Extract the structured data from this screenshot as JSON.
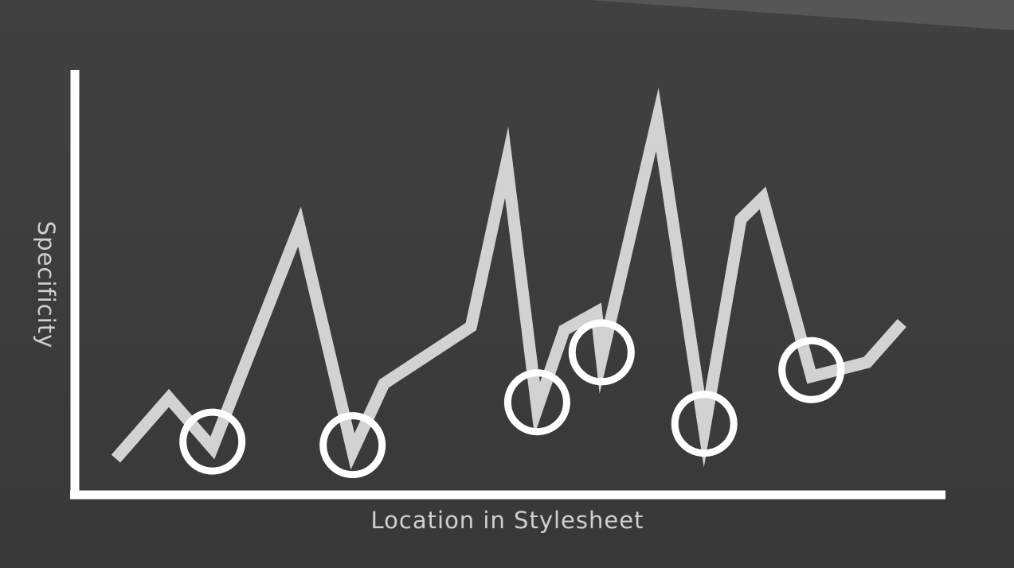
{
  "chart_data": {
    "type": "line",
    "title": "",
    "xlabel": "Location in Stylesheet",
    "ylabel": "Specificity",
    "xlim": [
      0,
      100
    ],
    "ylim": [
      0,
      100
    ],
    "grid": false,
    "legend": "none",
    "series": [
      {
        "values": [
          {
            "x": 4.7,
            "y": 9
          },
          {
            "x": 10.8,
            "y": 26
          },
          {
            "x": 15.8,
            "y": 12
          },
          {
            "x": 25.8,
            "y": 74
          },
          {
            "x": 31.9,
            "y": 11
          },
          {
            "x": 35.5,
            "y": 30
          },
          {
            "x": 45.5,
            "y": 46
          },
          {
            "x": 49.6,
            "y": 92
          },
          {
            "x": 53.1,
            "y": 23
          },
          {
            "x": 56.2,
            "y": 45
          },
          {
            "x": 59.9,
            "y": 50
          },
          {
            "x": 60.5,
            "y": 37
          },
          {
            "x": 66.9,
            "y": 104
          },
          {
            "x": 72.3,
            "y": 17
          },
          {
            "x": 76.5,
            "y": 76
          },
          {
            "x": 79.0,
            "y": 82
          },
          {
            "x": 84.6,
            "y": 32
          },
          {
            "x": 91.0,
            "y": 36
          },
          {
            "x": 95.0,
            "y": 47
          }
        ]
      }
    ],
    "highlighted_minima": [
      {
        "x": 15.8,
        "y": 12
      },
      {
        "x": 31.9,
        "y": 11
      },
      {
        "x": 53.1,
        "y": 23
      },
      {
        "x": 60.5,
        "y": 37
      },
      {
        "x": 72.3,
        "y": 17
      },
      {
        "x": 84.6,
        "y": 32
      }
    ],
    "colors": {
      "background": "#3d3d3d",
      "line": "#d2d2d2",
      "axis": "#ffffff",
      "circle": "#ffffff",
      "label": "#d0d0d0"
    }
  }
}
